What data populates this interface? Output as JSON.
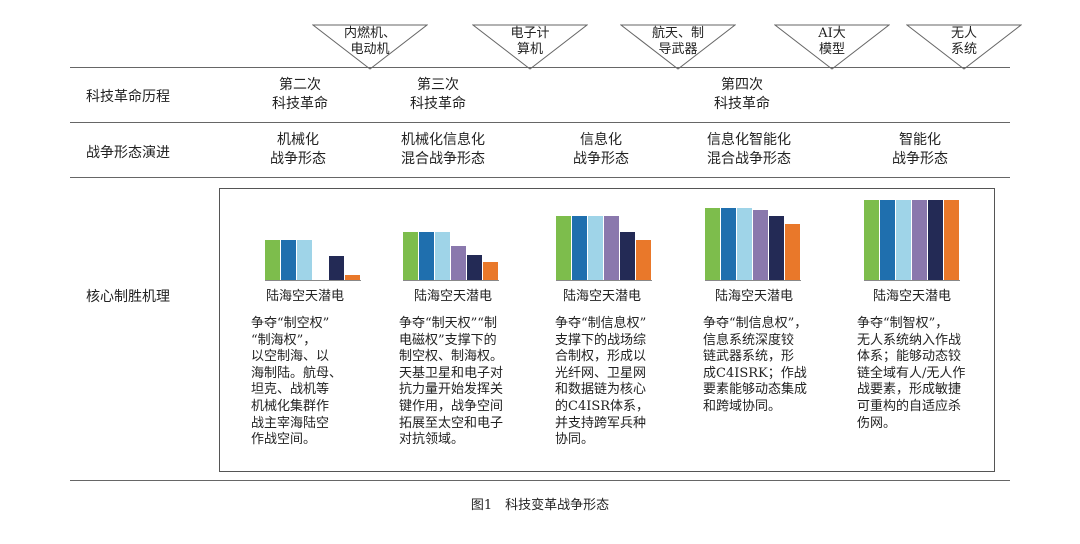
{
  "triangles": [
    {
      "label": "内燃机、\n电动机"
    },
    {
      "label": "电子计\n算机"
    },
    {
      "label": "航天、制\n导武器"
    },
    {
      "label": "AI大\n模型"
    },
    {
      "label": "无人\n系统"
    }
  ],
  "rows": {
    "revolution": "科技革命历程",
    "warfare": "战争形态演进",
    "mechanism": "核心制胜机理"
  },
  "revolutions": [
    {
      "label": "第二次\n科技革命"
    },
    {
      "label": "第三次\n科技革命"
    },
    {
      "label": "第四次\n科技革命"
    }
  ],
  "forms": [
    {
      "label": "机械化\n战争形态"
    },
    {
      "label": "机械化信息化\n混合战争形态"
    },
    {
      "label": "信息化\n战争形态"
    },
    {
      "label": "信息化智能化\n混合战争形态"
    },
    {
      "label": "智能化\n战争形态"
    }
  ],
  "domain_label": "陆海空天潜电",
  "colors": [
    "#7dbd4c",
    "#1f6fae",
    "#9fd4e8",
    "#8a78ad",
    "#232a55",
    "#e9782a"
  ],
  "chart_data": [
    {
      "type": "bar",
      "categories": [
        "陆",
        "海",
        "空",
        "天",
        "潜",
        "电"
      ],
      "values": [
        40,
        40,
        40,
        0,
        24,
        5
      ],
      "ylim": [
        0,
        80
      ]
    },
    {
      "type": "bar",
      "categories": [
        "陆",
        "海",
        "空",
        "天",
        "潜",
        "电"
      ],
      "values": [
        48,
        48,
        48,
        34,
        25,
        18
      ],
      "ylim": [
        0,
        80
      ]
    },
    {
      "type": "bar",
      "categories": [
        "陆",
        "海",
        "空",
        "天",
        "潜",
        "电"
      ],
      "values": [
        64,
        64,
        64,
        64,
        48,
        40
      ],
      "ylim": [
        0,
        80
      ]
    },
    {
      "type": "bar",
      "categories": [
        "陆",
        "海",
        "空",
        "天",
        "潜",
        "电"
      ],
      "values": [
        72,
        72,
        72,
        70,
        64,
        56
      ],
      "ylim": [
        0,
        80
      ]
    },
    {
      "type": "bar",
      "categories": [
        "陆",
        "海",
        "空",
        "天",
        "潜",
        "电"
      ],
      "values": [
        80,
        80,
        80,
        80,
        80,
        80
      ],
      "ylim": [
        0,
        80
      ]
    }
  ],
  "descriptions": [
    "争夺“制空权”\n“制海权”，\n以空制海、以\n海制陆。航母、\n坦克、战机等\n机械化集群作\n战主宰海陆空\n作战空间。",
    "争夺“制天权”“制\n电磁权”支撑下的\n制空权、制海权。\n天基卫星和电子对\n抗力量开始发挥关\n键作用，战争空间\n拓展至太空和电子\n对抗领域。",
    "争夺“制信息权”\n支撑下的战场综\n合制权，形成以\n光纤网、卫星网\n和数据链为核心\n的C4ISR体系，\n并支持跨军兵种\n协同。",
    "争夺“制信息权”，\n信息系统深度铰\n链武器系统，形\n成C4ISRK；作战\n要素能够动态集成\n和跨域协同。",
    "争夺“制智权”，\n无人系统纳入作战\n体系；能够动态铰\n链全域有人/无人作\n战要素，形成敏捷\n可重构的自适应杀\n伤网。"
  ],
  "caption": "图1　科技变革战争形态"
}
